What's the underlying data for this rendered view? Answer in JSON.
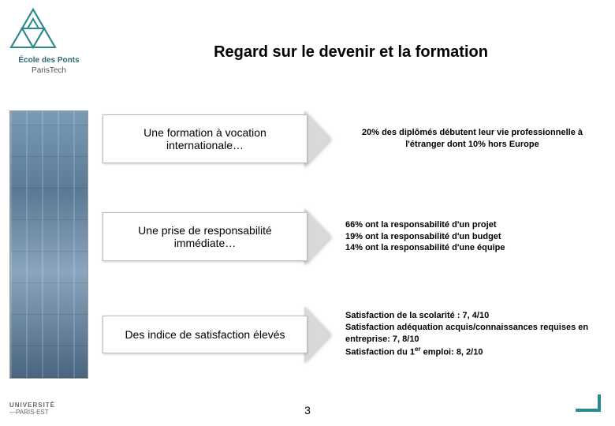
{
  "logo": {
    "line1": "École des Ponts",
    "line2": "ParisTech",
    "triangle_color": "#2a8a8d"
  },
  "title": "Regard sur le devenir et la formation",
  "rows": [
    {
      "heading": "Une formation à vocation internationale…",
      "desc_align": "center",
      "desc_html": "20% des diplômés débutent leur vie professionnelle à l'étranger dont 10% hors Europe"
    },
    {
      "heading": "Une prise de responsabilité immédiate…",
      "desc_align": "left",
      "desc_html": "66% ont la responsabilité d'un projet\n19% ont la responsabilité d'un budget\n14% ont la responsabilité d'une équipe"
    },
    {
      "heading": "Des indice de satisfaction élevés",
      "desc_align": "left",
      "desc_html": "Satisfaction de la scolarité :  7, 4/10\nSatisfaction adéquation acquis/connaissances requises en entreprise: 7, 8/10\nSatisfaction du 1ᵉʳ emploi: 8, 2/10"
    }
  ],
  "footer_logo": {
    "line1": "UNIVERSITÉ",
    "line2": "—PARIS-EST"
  },
  "page_number": "3",
  "colors": {
    "arrow_head": "#d9d9d9",
    "corner_accent": "#2a8a8d",
    "text": "#000000",
    "background": "#ffffff"
  }
}
